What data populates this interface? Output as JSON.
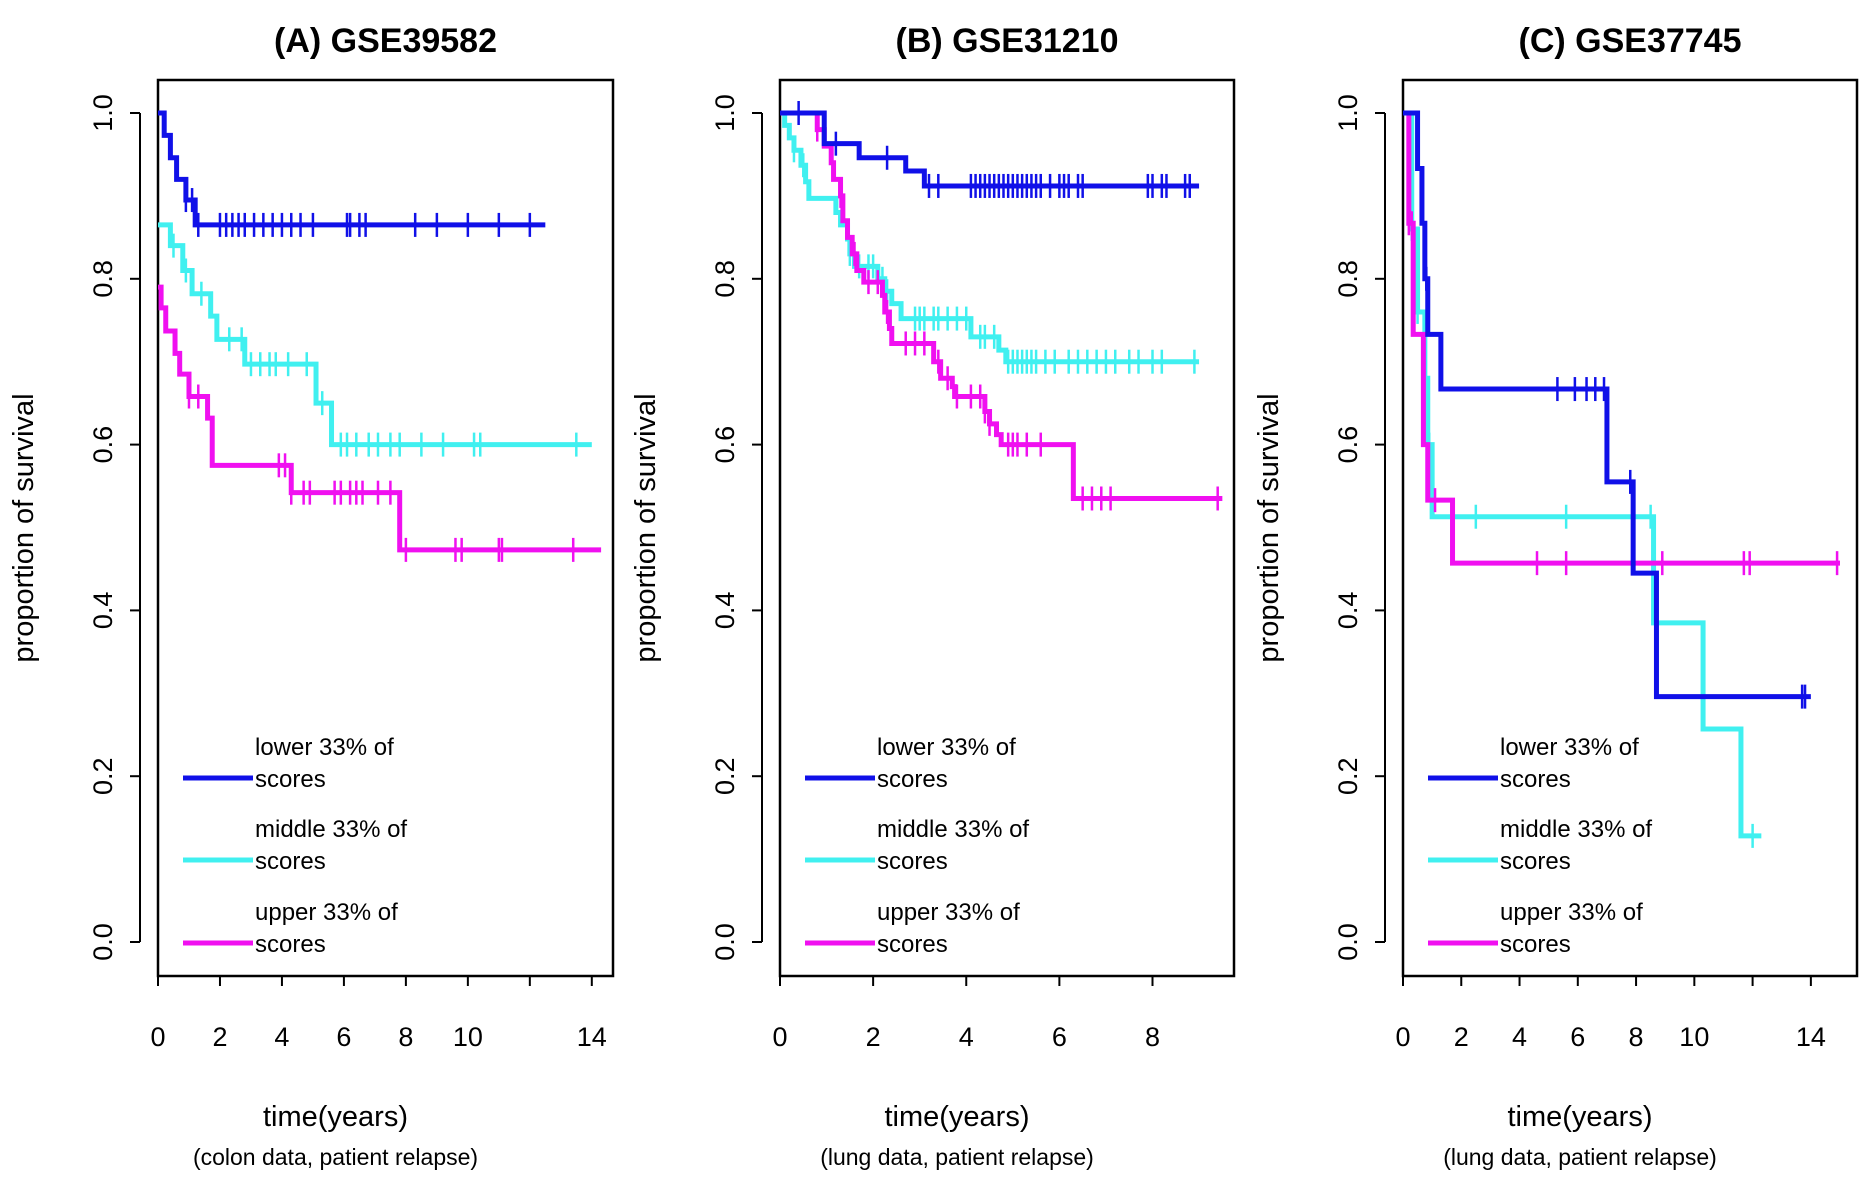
{
  "colors": {
    "lower": "#1010e8",
    "middle": "#40f0f0",
    "upper": "#f010f0"
  },
  "chart_data": [
    {
      "type": "line",
      "subtype": "kaplan-meier",
      "title": "(A) GSE39582",
      "xlabel": "time(years)",
      "subtitle": "(colon data, patient relapse)",
      "ylabel": "proportion of survival",
      "xlim": [
        0,
        14.2
      ],
      "ylim": [
        0,
        1.0
      ],
      "xticks": [
        0,
        2,
        4,
        6,
        8,
        10,
        14
      ],
      "yticks": [
        0.0,
        0.2,
        0.4,
        0.6,
        0.8,
        1.0
      ],
      "legend_position": "bottom-left",
      "series": [
        {
          "name": "lower 33% of scores",
          "color": "#1010e8",
          "steps": [
            [
              0,
              1.0
            ],
            [
              0.2,
              0.973
            ],
            [
              0.4,
              0.946
            ],
            [
              0.6,
              0.92
            ],
            [
              0.9,
              0.895
            ],
            [
              1.2,
              0.865
            ]
          ],
          "end": 12.5,
          "censors": [
            0.9,
            1.1,
            1.3,
            2.0,
            2.2,
            2.4,
            2.6,
            2.8,
            3.1,
            3.4,
            3.7,
            4.0,
            4.3,
            4.6,
            5.0,
            6.1,
            6.2,
            6.5,
            6.7,
            8.3,
            9.0,
            10.0,
            11.0,
            12.0
          ]
        },
        {
          "name": "middle 33% of scores",
          "color": "#40f0f0",
          "steps": [
            [
              0,
              0.865
            ],
            [
              0.4,
              0.84
            ],
            [
              0.8,
              0.81
            ],
            [
              1.1,
              0.782
            ],
            [
              1.7,
              0.755
            ],
            [
              1.9,
              0.727
            ],
            [
              2.8,
              0.697
            ],
            [
              5.1,
              0.65
            ],
            [
              5.6,
              0.6
            ]
          ],
          "end": 14.0,
          "censors": [
            0.5,
            0.9,
            1.4,
            2.3,
            2.7,
            3.0,
            3.3,
            3.6,
            3.8,
            4.2,
            4.8,
            5.3,
            5.9,
            6.1,
            6.4,
            6.8,
            7.1,
            7.5,
            7.8,
            8.5,
            9.2,
            10.2,
            10.4,
            13.5
          ]
        },
        {
          "name": "upper 33% of scores",
          "color": "#f010f0",
          "steps": [
            [
              0,
              0.79
            ],
            [
              0.1,
              0.765
            ],
            [
              0.25,
              0.737
            ],
            [
              0.55,
              0.71
            ],
            [
              0.7,
              0.685
            ],
            [
              1.0,
              0.658
            ],
            [
              1.6,
              0.632
            ],
            [
              1.75,
              0.575
            ],
            [
              4.3,
              0.542
            ],
            [
              7.8,
              0.473
            ]
          ],
          "end": 14.3,
          "censors": [
            1.0,
            1.3,
            3.9,
            4.1,
            4.3,
            4.7,
            4.9,
            5.7,
            5.9,
            6.2,
            6.4,
            6.6,
            7.1,
            7.5,
            8.0,
            9.6,
            9.8,
            11.0,
            11.1,
            13.4
          ]
        }
      ]
    },
    {
      "type": "line",
      "subtype": "kaplan-meier",
      "title": "(B) GSE31210",
      "xlabel": "time(years)",
      "subtitle": "(lung data, patient relapse)",
      "ylabel": "proportion of survival",
      "xlim": [
        0,
        9.6
      ],
      "ylim": [
        0,
        1.0
      ],
      "xticks": [
        0,
        2,
        4,
        6,
        8
      ],
      "yticks": [
        0.0,
        0.2,
        0.4,
        0.6,
        0.8,
        1.0
      ],
      "legend_position": "bottom-left",
      "series": [
        {
          "name": "lower 33% of scores",
          "color": "#1010e8",
          "steps": [
            [
              0,
              1.0
            ],
            [
              0.95,
              0.963
            ],
            [
              1.7,
              0.946
            ],
            [
              2.7,
              0.93
            ],
            [
              3.1,
              0.912
            ]
          ],
          "end": 9.0,
          "censors": [
            0.4,
            1.2,
            2.3,
            3.2,
            3.4,
            4.1,
            4.2,
            4.3,
            4.4,
            4.5,
            4.6,
            4.7,
            4.8,
            4.9,
            5.0,
            5.1,
            5.2,
            5.3,
            5.4,
            5.5,
            5.6,
            5.8,
            6.0,
            6.1,
            6.2,
            6.4,
            6.5,
            7.9,
            8.0,
            8.2,
            8.3,
            8.7,
            8.8
          ]
        },
        {
          "name": "middle 33% of scores",
          "color": "#40f0f0",
          "steps": [
            [
              0,
              1.0
            ],
            [
              0.1,
              0.985
            ],
            [
              0.2,
              0.97
            ],
            [
              0.3,
              0.955
            ],
            [
              0.45,
              0.937
            ],
            [
              0.55,
              0.917
            ],
            [
              0.62,
              0.897
            ],
            [
              1.2,
              0.88
            ],
            [
              1.3,
              0.865
            ],
            [
              1.45,
              0.848
            ],
            [
              1.5,
              0.83
            ],
            [
              1.6,
              0.815
            ],
            [
              2.1,
              0.8
            ],
            [
              2.25,
              0.785
            ],
            [
              2.4,
              0.77
            ],
            [
              2.6,
              0.752
            ],
            [
              4.1,
              0.73
            ],
            [
              4.7,
              0.714
            ],
            [
              4.85,
              0.7
            ]
          ],
          "end": 9.0,
          "censors": [
            0.3,
            0.5,
            1.5,
            1.7,
            1.9,
            2.0,
            2.2,
            2.3,
            2.9,
            3.0,
            3.1,
            3.3,
            3.4,
            3.6,
            3.8,
            4.0,
            4.3,
            4.4,
            4.6,
            4.9,
            5.0,
            5.1,
            5.2,
            5.3,
            5.4,
            5.5,
            5.7,
            5.9,
            6.2,
            6.4,
            6.6,
            6.8,
            7.0,
            7.2,
            7.5,
            7.7,
            8.0,
            8.2,
            8.9
          ]
        },
        {
          "name": "upper 33% of scores",
          "color": "#f010f0",
          "steps": [
            [
              0,
              1.0
            ],
            [
              0.8,
              0.98
            ],
            [
              0.95,
              0.96
            ],
            [
              1.1,
              0.94
            ],
            [
              1.15,
              0.92
            ],
            [
              1.3,
              0.9
            ],
            [
              1.35,
              0.87
            ],
            [
              1.45,
              0.85
            ],
            [
              1.55,
              0.83
            ],
            [
              1.65,
              0.81
            ],
            [
              1.8,
              0.796
            ],
            [
              2.2,
              0.78
            ],
            [
              2.25,
              0.76
            ],
            [
              2.35,
              0.74
            ],
            [
              2.4,
              0.722
            ],
            [
              3.3,
              0.7
            ],
            [
              3.45,
              0.68
            ],
            [
              3.7,
              0.67
            ],
            [
              3.75,
              0.658
            ],
            [
              4.4,
              0.64
            ],
            [
              4.5,
              0.625
            ],
            [
              4.65,
              0.612
            ],
            [
              4.75,
              0.6
            ],
            [
              6.3,
              0.535
            ]
          ],
          "end": 9.5,
          "censors": [
            0.8,
            1.3,
            1.6,
            1.9,
            2.1,
            2.3,
            2.7,
            2.9,
            3.1,
            3.4,
            3.6,
            3.8,
            4.1,
            4.3,
            4.4,
            4.5,
            4.9,
            5.0,
            5.1,
            5.3,
            5.6,
            6.5,
            6.7,
            6.9,
            7.1,
            9.4
          ]
        }
      ]
    },
    {
      "type": "line",
      "subtype": "kaplan-meier",
      "title": "(C) GSE37745",
      "xlabel": "time(years)",
      "subtitle": "(lung data, patient relapse)",
      "ylabel": "proportion of survival",
      "xlim": [
        0,
        15
      ],
      "ylim": [
        0,
        1.0
      ],
      "xticks": [
        0,
        2,
        4,
        6,
        8,
        10,
        14
      ],
      "yticks": [
        0.0,
        0.2,
        0.4,
        0.6,
        0.8,
        1.0
      ],
      "legend_position": "bottom-left",
      "series": [
        {
          "name": "lower 33% of scores",
          "color": "#1010e8",
          "steps": [
            [
              0,
              1.0
            ],
            [
              0.5,
              0.933
            ],
            [
              0.65,
              0.867
            ],
            [
              0.75,
              0.8
            ],
            [
              0.85,
              0.733
            ],
            [
              1.3,
              0.667
            ],
            [
              7.0,
              0.555
            ],
            [
              7.9,
              0.445
            ],
            [
              8.7,
              0.296
            ]
          ],
          "end": 14.0,
          "censors": [
            0.8,
            5.3,
            5.9,
            6.3,
            6.6,
            6.9,
            7.8,
            13.7,
            13.8
          ]
        },
        {
          "name": "middle 33% of scores",
          "color": "#40f0f0",
          "steps": [
            [
              0,
              1.0
            ],
            [
              0.3,
              0.86
            ],
            [
              0.5,
              0.76
            ],
            [
              0.75,
              0.68
            ],
            [
              0.85,
              0.6
            ],
            [
              1.0,
              0.513
            ],
            [
              8.6,
              0.385
            ],
            [
              10.3,
              0.257
            ],
            [
              11.6,
              0.128
            ]
          ],
          "end": 12.3,
          "censors": [
            0.3,
            0.5,
            0.9,
            2.5,
            5.6,
            8.5,
            12.0
          ]
        },
        {
          "name": "upper 33% of scores",
          "color": "#f010f0",
          "steps": [
            [
              0,
              1.0
            ],
            [
              0.2,
              0.867
            ],
            [
              0.35,
              0.733
            ],
            [
              0.7,
              0.6
            ],
            [
              0.85,
              0.533
            ],
            [
              1.7,
              0.457
            ]
          ],
          "end": 15.0,
          "censors": [
            0.2,
            0.3,
            1.1,
            4.6,
            5.6,
            8.9,
            11.7,
            11.9,
            14.9
          ]
        }
      ]
    }
  ]
}
